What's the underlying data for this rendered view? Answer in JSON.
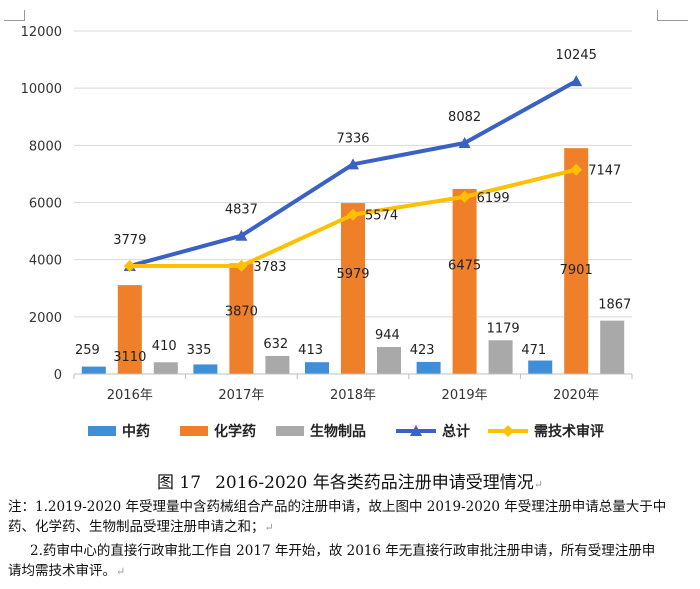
{
  "chart_data": {
    "type": "bar",
    "title": "",
    "xlabel": "",
    "ylabel": "",
    "ylim": [
      0,
      12000
    ],
    "yticks": [
      "0",
      "2000",
      "4000",
      "6000",
      "8000",
      "10000",
      "12000"
    ],
    "categories": [
      "2016年",
      "2017年",
      "2018年",
      "2019年",
      "2020年"
    ],
    "bar_series": [
      {
        "name": "中药",
        "color": "#3e8fd8",
        "values": [
          259,
          335,
          413,
          423,
          471
        ]
      },
      {
        "name": "化学药",
        "color": "#f07f2a",
        "values": [
          3110,
          3870,
          5979,
          6475,
          7901
        ]
      },
      {
        "name": "生物制品",
        "color": "#a9a9a9",
        "values": [
          410,
          632,
          944,
          1179,
          1867
        ]
      }
    ],
    "line_series": [
      {
        "name": "总计",
        "color": "#3a62c4",
        "marker": "triangle",
        "values": [
          3779,
          4837,
          7336,
          8082,
          10245
        ]
      },
      {
        "name": "需技术审评",
        "color": "#ffc000",
        "marker": "diamond",
        "values": [
          3779,
          3783,
          5574,
          6199,
          7147
        ]
      }
    ],
    "line_labels": {
      "总计": [
        "3779",
        "4837",
        "7336",
        "8082",
        "10245"
      ],
      "需技术审评": [
        "",
        "3783",
        "5574",
        "6199",
        "7147"
      ]
    },
    "legend_position": "bottom"
  },
  "caption": {
    "number": "图 17",
    "text": "2016-2020 年各类药品注册申请受理情况"
  },
  "notes": {
    "note1": "注：1.2019-2020 年受理量中含药械组合产品的注册申请，故上图中 2019-2020 年受理注册申请总量大于中药、化学药、生物制品受理注册申请之和；",
    "note2": "2.药审中心的直接行政审批工作自 2017 年开始，故 2016 年无直接行政审批注册申请，所有受理注册申请均需技术审评。"
  },
  "marks": {
    "paragraph": "↵"
  }
}
